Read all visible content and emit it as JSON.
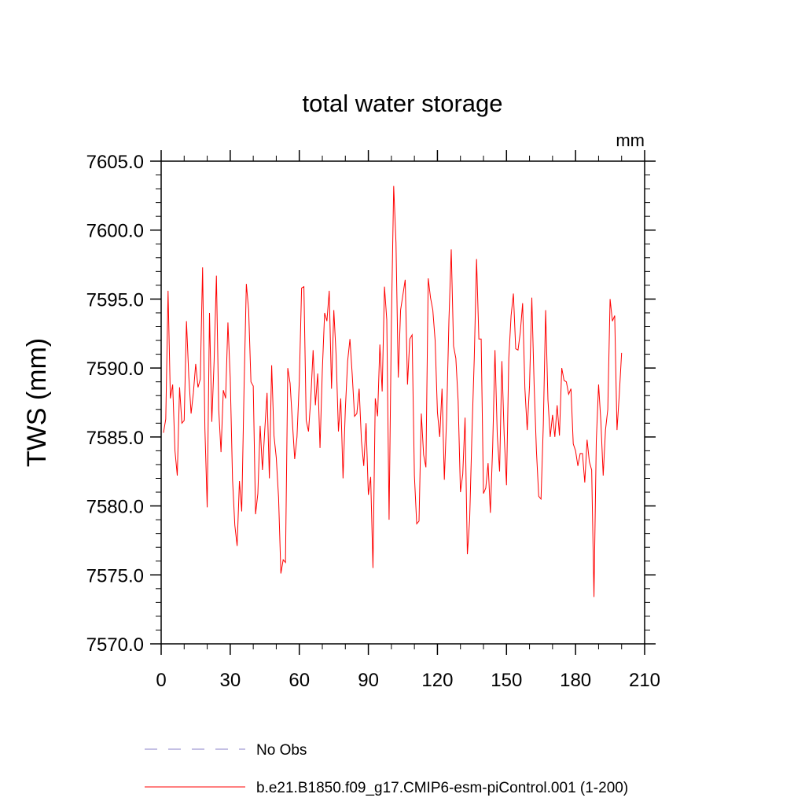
{
  "chart_data": {
    "type": "line",
    "title": "total water storage",
    "units_label": "mm",
    "xlabel": "",
    "ylabel": "TWS  (mm)",
    "xlim": [
      0,
      210
    ],
    "ylim": [
      7570,
      7605
    ],
    "x_ticks": [
      0,
      30,
      60,
      90,
      120,
      150,
      180,
      210
    ],
    "x_tick_labels": [
      "0",
      "30",
      "60",
      "90",
      "120",
      "150",
      "180",
      "210"
    ],
    "y_ticks": [
      7570,
      7575,
      7580,
      7585,
      7590,
      7595,
      7600,
      7605
    ],
    "y_tick_labels": [
      "7570.0",
      "7575.0",
      "7580.0",
      "7585.0",
      "7590.0",
      "7595.0",
      "7600.0",
      "7605.0"
    ],
    "grid": false,
    "legend": [
      {
        "label": "No Obs",
        "style": "dashed",
        "color": "#8a82c8"
      },
      {
        "label": "b.e21.B1850.f09_g17.CMIP6-esm-piControl.001 (1-200)",
        "style": "solid",
        "color": "#ff0000"
      }
    ],
    "series": [
      {
        "name": "b.e21.B1850.f09_g17.CMIP6-esm-piControl.001 (1-200)",
        "color": "#ff0000",
        "x_start": 1,
        "values": [
          7585.3,
          7586.3,
          7595.6,
          7587.8,
          7588.8,
          7584.0,
          7582.2,
          7588.6,
          7586.0,
          7586.2,
          7593.4,
          7589.4,
          7586.7,
          7588.2,
          7590.3,
          7588.6,
          7589.2,
          7597.3,
          7585.6,
          7579.9,
          7594.0,
          7586.1,
          7590.5,
          7596.7,
          7587.0,
          7583.9,
          7588.4,
          7587.8,
          7593.3,
          7589.3,
          7581.9,
          7578.6,
          7577.1,
          7581.8,
          7579.6,
          7588.5,
          7596.1,
          7594.2,
          7589.0,
          7588.7,
          7579.4,
          7580.9,
          7585.8,
          7582.6,
          7585.5,
          7588.2,
          7582.0,
          7590.2,
          7585.1,
          7583.5,
          7580.6,
          7575.1,
          7576.1,
          7575.9,
          7590.0,
          7588.9,
          7586.1,
          7583.4,
          7585.0,
          7589.0,
          7595.8,
          7595.9,
          7586.2,
          7585.4,
          7587.8,
          7591.3,
          7587.3,
          7589.6,
          7584.2,
          7589.8,
          7594.0,
          7593.4,
          7595.6,
          7588.5,
          7594.2,
          7590.9,
          7585.4,
          7587.8,
          7582.0,
          7587.0,
          7590.5,
          7592.1,
          7589.5,
          7586.5,
          7586.7,
          7588.5,
          7584.7,
          7582.9,
          7586.0,
          7580.8,
          7582.1,
          7575.5,
          7587.8,
          7586.5,
          7591.7,
          7588.3,
          7595.9,
          7593.5,
          7579.0,
          7593.2,
          7603.2,
          7599.1,
          7589.3,
          7594.2,
          7595.3,
          7596.4,
          7588.8,
          7592.1,
          7592.4,
          7582.2,
          7578.7,
          7578.9,
          7586.7,
          7583.7,
          7582.8,
          7596.5,
          7595.1,
          7594.2,
          7592.0,
          7586.8,
          7585.0,
          7588.5,
          7581.9,
          7586.4,
          7593.5,
          7598.6,
          7591.6,
          7590.7,
          7587.6,
          7581.0,
          7582.3,
          7586.4,
          7576.5,
          7579.0,
          7585.3,
          7590.7,
          7597.9,
          7592.1,
          7592.1,
          7580.9,
          7581.3,
          7583.1,
          7579.5,
          7584.3,
          7591.3,
          7585.1,
          7582.5,
          7590.5,
          7585.1,
          7581.5,
          7590.7,
          7593.8,
          7595.4,
          7591.4,
          7591.3,
          7592.6,
          7594.7,
          7588.5,
          7585.5,
          7588.7,
          7595.1,
          7588.8,
          7584.0,
          7580.7,
          7580.5,
          7585.9,
          7594.2,
          7587.7,
          7585.0,
          7586.6,
          7585.0,
          7587.3,
          7585.1,
          7590.0,
          7589.1,
          7589.0,
          7588.1,
          7588.5,
          7584.5,
          7584.0,
          7582.9,
          7583.8,
          7583.8,
          7581.7,
          7584.8,
          7583.2,
          7582.6,
          7573.4,
          7584.7,
          7588.8,
          7586.1,
          7582.2,
          7585.5,
          7587.0,
          7595.0,
          7593.4,
          7593.8,
          7585.5,
          7588.1,
          7591.1
        ]
      }
    ]
  }
}
